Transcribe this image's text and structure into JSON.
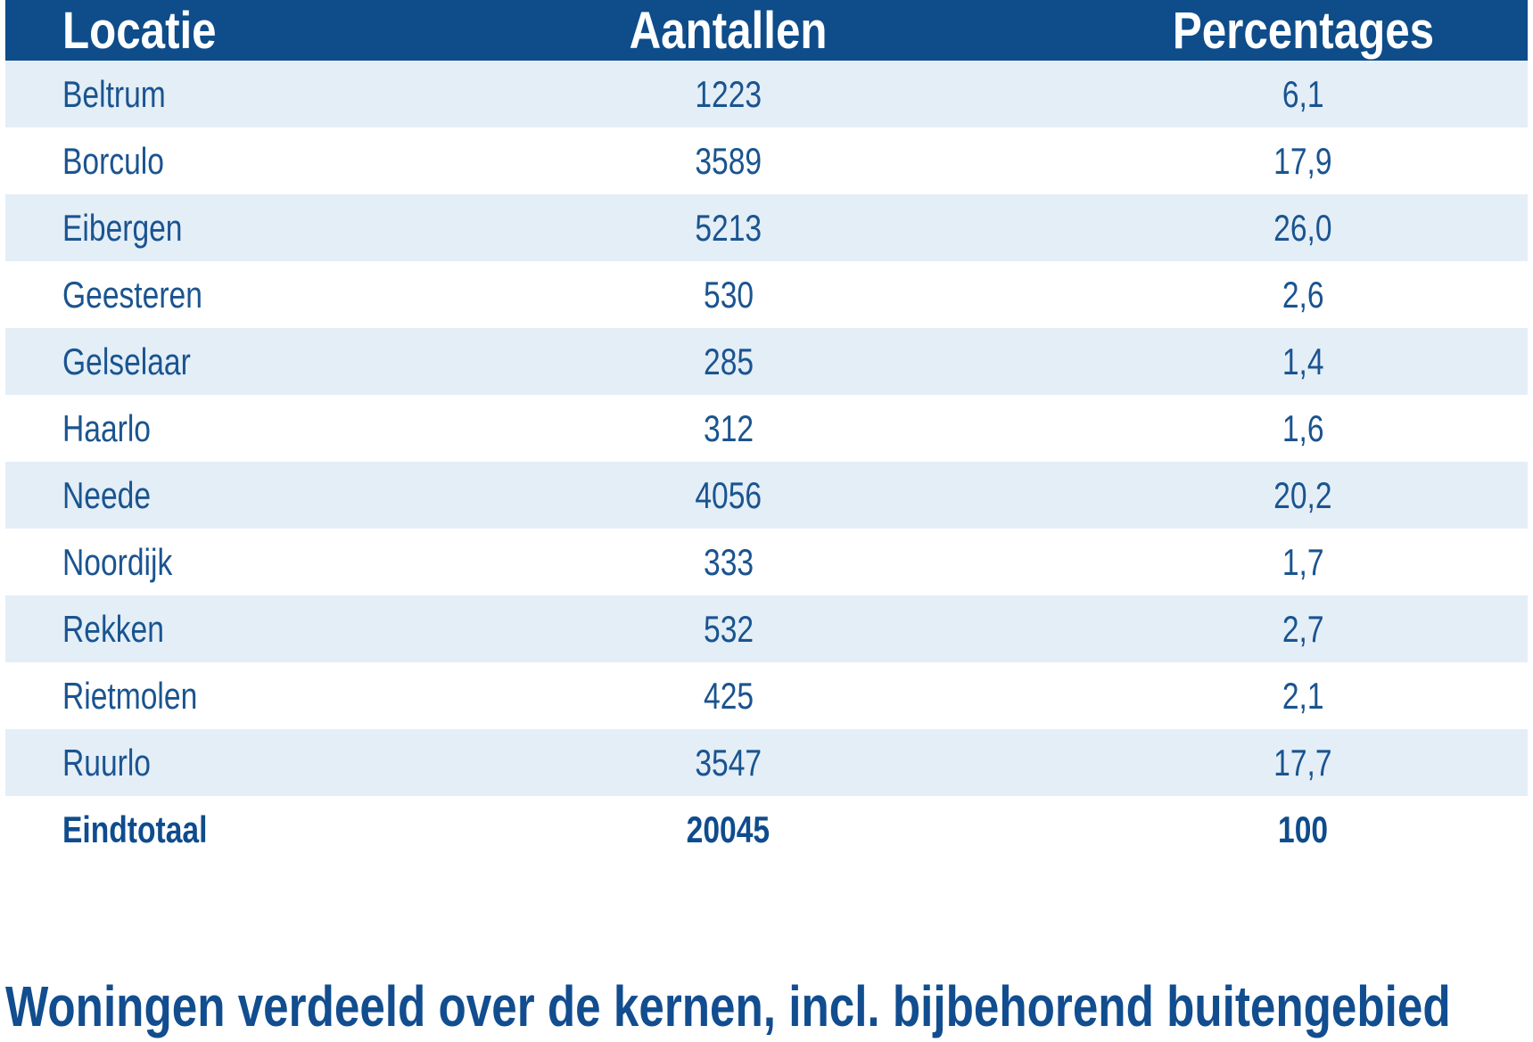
{
  "table": {
    "columns": {
      "locatie": "Locatie",
      "aantallen": "Aantallen",
      "percentages": "Percentages"
    },
    "rows": [
      {
        "locatie": "Beltrum",
        "aantal": "1223",
        "percentage": "6,1"
      },
      {
        "locatie": "Borculo",
        "aantal": "3589",
        "percentage": "17,9"
      },
      {
        "locatie": "Eibergen",
        "aantal": "5213",
        "percentage": "26,0"
      },
      {
        "locatie": "Geesteren",
        "aantal": "530",
        "percentage": "2,6"
      },
      {
        "locatie": "Gelselaar",
        "aantal": "285",
        "percentage": "1,4"
      },
      {
        "locatie": "Haarlo",
        "aantal": "312",
        "percentage": "1,6"
      },
      {
        "locatie": "Neede",
        "aantal": "4056",
        "percentage": "20,2"
      },
      {
        "locatie": "Noordijk",
        "aantal": "333",
        "percentage": "1,7"
      },
      {
        "locatie": "Rekken",
        "aantal": "532",
        "percentage": "2,7"
      },
      {
        "locatie": "Rietmolen",
        "aantal": "425",
        "percentage": "2,1"
      },
      {
        "locatie": "Ruurlo",
        "aantal": "3547",
        "percentage": "17,7"
      }
    ],
    "total_row": {
      "locatie": "Eindtotaal",
      "aantal": "20045",
      "percentage": "100"
    }
  },
  "caption": "Woningen verdeeld over de kernen, incl. bijbehorend buitengebied",
  "colors": {
    "header_bg": "#0e4c8a",
    "header_text": "#ffffff",
    "row_alt_bg": "#e4eef7",
    "row_bg": "#ffffff",
    "cell_text": "#1a5490",
    "total_text": "#0f4c8d",
    "caption_text": "#114d8f"
  },
  "chart_data": {
    "type": "table",
    "title": "Woningen verdeeld over de kernen, incl. bijbehorend buitengebied",
    "columns": [
      "Locatie",
      "Aantallen",
      "Percentages"
    ],
    "rows": [
      [
        "Beltrum",
        1223,
        "6,1"
      ],
      [
        "Borculo",
        3589,
        "17,9"
      ],
      [
        "Eibergen",
        5213,
        "26,0"
      ],
      [
        "Geesteren",
        530,
        "2,6"
      ],
      [
        "Gelselaar",
        285,
        "1,4"
      ],
      [
        "Haarlo",
        312,
        "1,6"
      ],
      [
        "Neede",
        4056,
        "20,2"
      ],
      [
        "Noordijk",
        333,
        "1,7"
      ],
      [
        "Rekken",
        532,
        "2,7"
      ],
      [
        "Rietmolen",
        425,
        "2,1"
      ],
      [
        "Ruurlo",
        3547,
        "17,7"
      ]
    ],
    "total": [
      "Eindtotaal",
      20045,
      "100"
    ],
    "layout": {
      "header_position": "top",
      "zebra_striping": true,
      "caption_position": "bottom"
    }
  }
}
